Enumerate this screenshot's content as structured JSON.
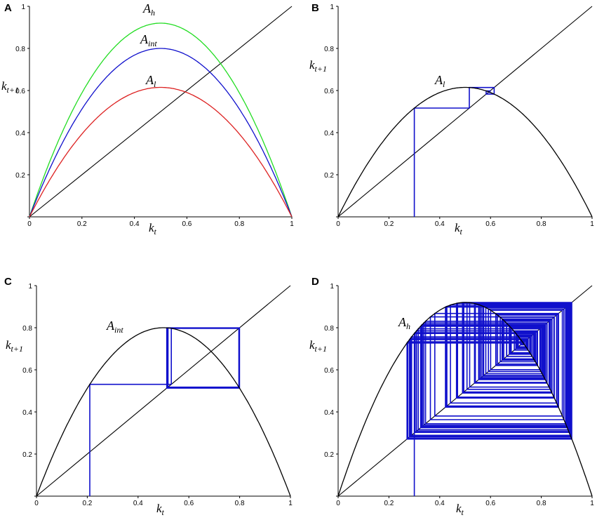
{
  "chart_data": [
    {
      "panel": "A",
      "type": "line",
      "xlabel_base": "k",
      "xlabel_sub": "t",
      "ylabel_base": "k",
      "ylabel_sub": "t+1",
      "xlim": [
        0,
        1
      ],
      "ylim": [
        0,
        1
      ],
      "xticks": [
        "0",
        "0.2",
        "0.4",
        "0.6",
        "0.8",
        "1"
      ],
      "yticks": [
        "0",
        "0.2",
        "0.4",
        "0.6",
        "0.8",
        "1"
      ],
      "grid": false,
      "diagonal": {
        "from": [
          0,
          0
        ],
        "to": [
          1,
          1
        ],
        "color": "#000000"
      },
      "series": [
        {
          "label_base": "A",
          "label_sub": "h",
          "A": 3.68,
          "color": "#22dd22",
          "peak": 0.92
        },
        {
          "label_base": "A",
          "label_sub": "int",
          "A": 3.2,
          "color": "#1010cc",
          "peak": 0.8
        },
        {
          "label_base": "A",
          "label_sub": "l",
          "A": 2.46,
          "color": "#dd2222",
          "peak": 0.615
        }
      ]
    },
    {
      "panel": "B",
      "type": "line",
      "xlabel_base": "k",
      "xlabel_sub": "t",
      "ylabel_base": "k",
      "ylabel_sub": "t+1",
      "xlim": [
        0,
        1
      ],
      "ylim": [
        0,
        1
      ],
      "xticks": [
        "0",
        "0.2",
        "0.4",
        "0.6",
        "0.8",
        "1"
      ],
      "yticks": [
        "0",
        "0.2",
        "0.4",
        "0.6",
        "0.8",
        "1"
      ],
      "grid": false,
      "diagonal": {
        "from": [
          0,
          0
        ],
        "to": [
          1,
          1
        ],
        "color": "#000000"
      },
      "series": [
        {
          "label_base": "A",
          "label_sub": "l",
          "A": 2.46,
          "color": "#000000",
          "peak": 0.615
        }
      ],
      "cobweb": {
        "A": 2.46,
        "k0": 0.3,
        "iterations": 40,
        "color": "#1010cc"
      }
    },
    {
      "panel": "C",
      "type": "line",
      "xlabel_base": "k",
      "xlabel_sub": "t",
      "ylabel_base": "k",
      "ylabel_sub": "t+1",
      "xlim": [
        0,
        1
      ],
      "ylim": [
        0,
        1
      ],
      "xticks": [
        "0",
        "0.2",
        "0.4",
        "0.6",
        "0.8",
        "1"
      ],
      "yticks": [
        "0",
        "0.2",
        "0.4",
        "0.6",
        "0.8",
        "1"
      ],
      "grid": false,
      "diagonal": {
        "from": [
          0,
          0
        ],
        "to": [
          1,
          1
        ],
        "color": "#000000"
      },
      "series": [
        {
          "label_base": "A",
          "label_sub": "int",
          "A": 3.2,
          "color": "#000000",
          "peak": 0.8
        }
      ],
      "cobweb": {
        "A": 3.2,
        "k0": 0.21,
        "iterations": 30,
        "color": "#1010cc"
      }
    },
    {
      "panel": "D",
      "type": "line",
      "xlabel_base": "k",
      "xlabel_sub": "t",
      "ylabel_base": "k",
      "ylabel_sub": "t+1",
      "xlim": [
        0,
        1
      ],
      "ylim": [
        0,
        1
      ],
      "xticks": [
        "0",
        "0.2",
        "0.4",
        "0.6",
        "0.8",
        "1"
      ],
      "yticks": [
        "0",
        "0.2",
        "0.4",
        "0.6",
        "0.8",
        "1"
      ],
      "grid": false,
      "diagonal": {
        "from": [
          0,
          0
        ],
        "to": [
          1,
          1
        ],
        "color": "#000000"
      },
      "series": [
        {
          "label_base": "A",
          "label_sub": "h",
          "A": 3.68,
          "color": "#000000",
          "peak": 0.92
        }
      ],
      "cobweb": {
        "A": 3.68,
        "k0": 0.3,
        "iterations": 160,
        "color": "#1010cc"
      }
    }
  ]
}
